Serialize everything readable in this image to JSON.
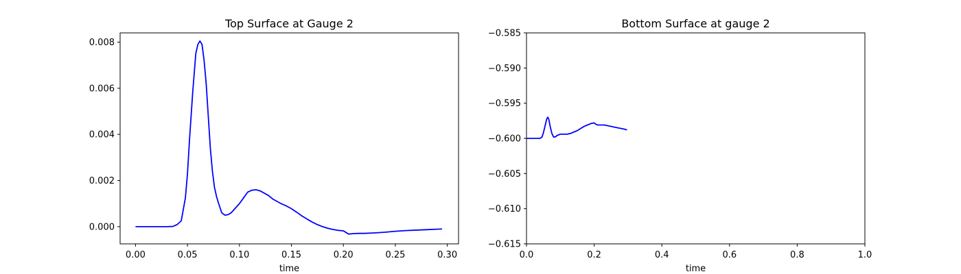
{
  "chart_data": [
    {
      "type": "line",
      "title": "Top Surface at Gauge 2",
      "xlabel": "time",
      "ylabel": "",
      "xlim": [
        -0.0148,
        0.3108
      ],
      "ylim": [
        -0.000745,
        0.0084
      ],
      "xticks": [
        0.0,
        0.05,
        0.1,
        0.15,
        0.2,
        0.25,
        0.3
      ],
      "xtick_labels": [
        "0.00",
        "0.05",
        "0.10",
        "0.15",
        "0.20",
        "0.25",
        "0.30"
      ],
      "yticks": [
        0.0,
        0.002,
        0.004,
        0.006,
        0.008
      ],
      "ytick_labels": [
        "0.000",
        "0.002",
        "0.004",
        "0.006",
        "0.008"
      ],
      "grid": false,
      "series": [
        {
          "color": "#0000ff",
          "x": [
            0.0,
            0.01,
            0.02,
            0.03,
            0.036,
            0.04,
            0.044,
            0.048,
            0.05,
            0.052,
            0.055,
            0.058,
            0.06,
            0.062,
            0.064,
            0.066,
            0.068,
            0.07,
            0.072,
            0.074,
            0.076,
            0.078,
            0.08,
            0.083,
            0.086,
            0.089,
            0.092,
            0.095,
            0.098,
            0.1,
            0.104,
            0.108,
            0.112,
            0.116,
            0.12,
            0.124,
            0.128,
            0.132,
            0.136,
            0.14,
            0.145,
            0.15,
            0.155,
            0.16,
            0.165,
            0.17,
            0.175,
            0.18,
            0.185,
            0.19,
            0.195,
            0.2,
            0.205,
            0.21,
            0.215,
            0.22,
            0.23,
            0.24,
            0.25,
            0.26,
            0.27,
            0.28,
            0.29,
            0.295
          ],
          "y": [
            0.0,
            0.0,
            0.0,
            0.0,
            1e-05,
            9e-05,
            0.00025,
            0.00125,
            0.0023,
            0.0038,
            0.0058,
            0.0075,
            0.0079,
            0.00805,
            0.0079,
            0.0072,
            0.0062,
            0.0048,
            0.0034,
            0.0024,
            0.0017,
            0.0013,
            0.001,
            0.0006,
            0.0005,
            0.00052,
            0.0006,
            0.00075,
            0.0009,
            0.001,
            0.00125,
            0.0015,
            0.00158,
            0.0016,
            0.00155,
            0.00145,
            0.00135,
            0.0012,
            0.0011,
            0.001,
            0.0009,
            0.00078,
            0.00063,
            0.00047,
            0.00033,
            0.0002,
            9e-05,
            0.0,
            -7e-05,
            -0.00012,
            -0.00016,
            -0.00018,
            -0.00032,
            -0.0003,
            -0.00029,
            -0.00029,
            -0.00027,
            -0.00024,
            -0.0002,
            -0.00017,
            -0.00015,
            -0.00013,
            -0.00011,
            -0.0001
          ]
        }
      ]
    },
    {
      "type": "line",
      "title": "Bottom Surface at gauge 2",
      "xlabel": "time",
      "ylabel": "",
      "xlim": [
        0.0,
        1.0
      ],
      "ylim": [
        -0.615,
        -0.585
      ],
      "xticks": [
        0.0,
        0.2,
        0.4,
        0.6,
        0.8,
        1.0
      ],
      "xtick_labels": [
        "0.0",
        "0.2",
        "0.4",
        "0.6",
        "0.8",
        "1.0"
      ],
      "yticks": [
        -0.615,
        -0.61,
        -0.605,
        -0.6,
        -0.595,
        -0.59,
        -0.585
      ],
      "ytick_labels": [
        "−0.615",
        "−0.610",
        "−0.605",
        "−0.600",
        "−0.595",
        "−0.590",
        "−0.585"
      ],
      "grid": false,
      "series": [
        {
          "color": "#0000ff",
          "x": [
            0.0,
            0.02,
            0.04,
            0.046,
            0.05,
            0.055,
            0.06,
            0.063,
            0.066,
            0.07,
            0.075,
            0.08,
            0.085,
            0.09,
            0.095,
            0.1,
            0.11,
            0.12,
            0.13,
            0.14,
            0.15,
            0.16,
            0.17,
            0.18,
            0.19,
            0.2,
            0.205,
            0.21,
            0.22,
            0.23,
            0.24,
            0.25,
            0.26,
            0.27,
            0.28,
            0.29,
            0.297
          ],
          "y": [
            -0.6,
            -0.6,
            -0.6,
            -0.5998,
            -0.5992,
            -0.5982,
            -0.5972,
            -0.597,
            -0.5973,
            -0.5983,
            -0.5993,
            -0.5998,
            -0.5998,
            -0.5996,
            -0.5995,
            -0.5994,
            -0.5994,
            -0.5994,
            -0.5993,
            -0.5991,
            -0.5989,
            -0.5986,
            -0.5983,
            -0.5981,
            -0.5979,
            -0.5978,
            -0.598,
            -0.5981,
            -0.5981,
            -0.5981,
            -0.5982,
            -0.5983,
            -0.5984,
            -0.5985,
            -0.5986,
            -0.5987,
            -0.5988
          ]
        }
      ]
    }
  ]
}
